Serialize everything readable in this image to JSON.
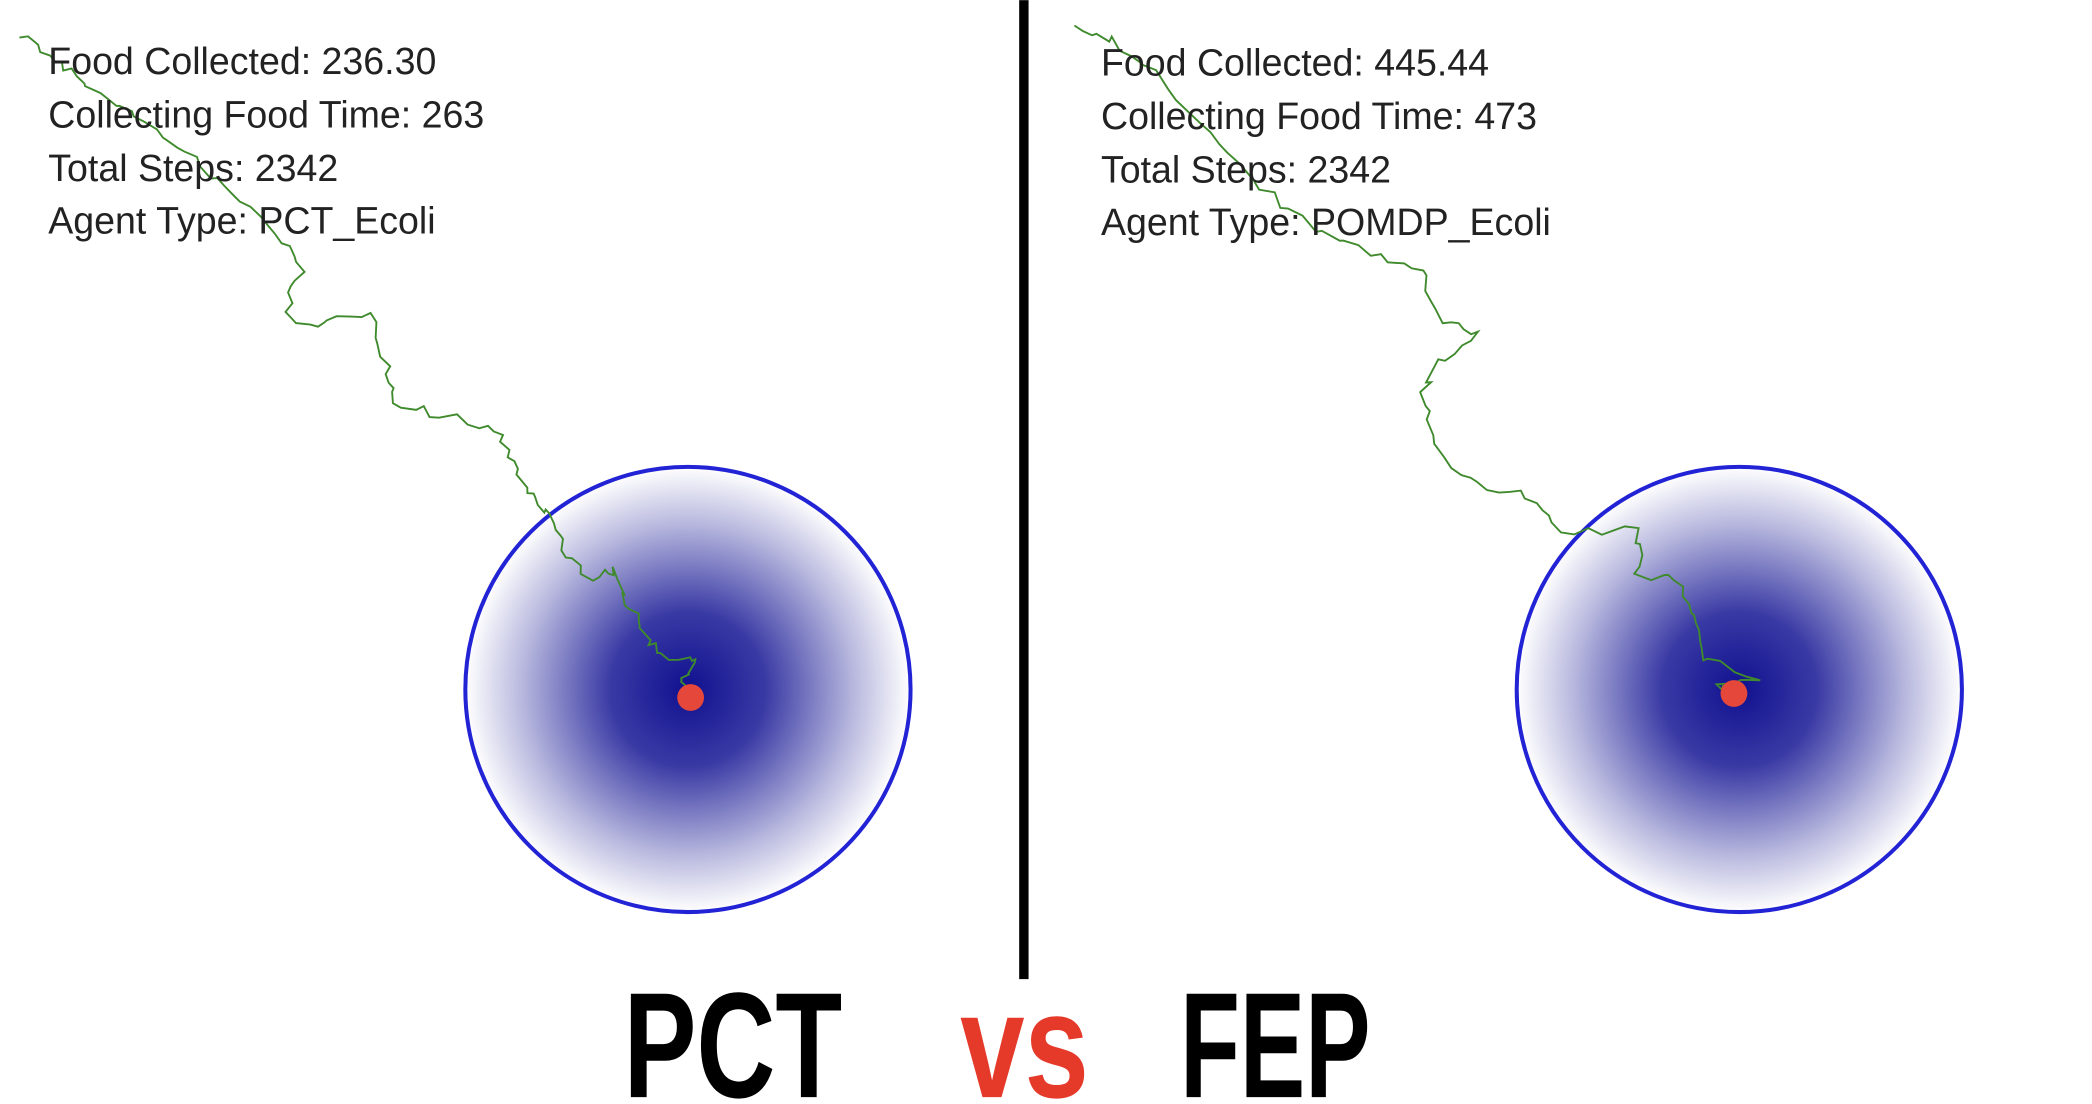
{
  "panels": [
    {
      "lines": [
        "Food Collected: 236.30",
        "Collecting Food Time: 263",
        "Total Steps: 2342",
        "Agent Type: PCT_Ecoli"
      ]
    },
    {
      "lines": [
        "Food Collected: 445.44",
        "Collecting Food Time: 473",
        "Total Steps: 2342",
        "Agent Type: POMDP_Ecoli"
      ]
    }
  ],
  "labels": {
    "left": "PCT",
    "middle": "vs",
    "right": "FEP"
  }
}
